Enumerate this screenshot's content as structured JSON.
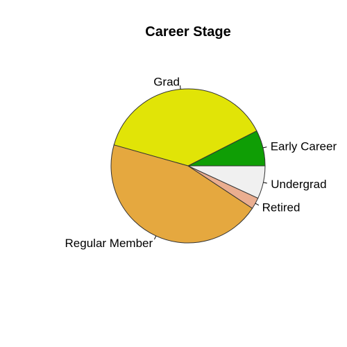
{
  "chart_data": {
    "type": "pie",
    "title": "Career Stage",
    "start_angle_deg": 0,
    "direction": "counterclockwise",
    "slices": [
      {
        "label": "Early Career",
        "value": 7.2,
        "color": "#0f9e05"
      },
      {
        "label": "Grad",
        "value": 36.5,
        "color": "#e1e407"
      },
      {
        "label": "Regular Member",
        "value": 43.2,
        "color": "#e5a83f"
      },
      {
        "label": "Retired",
        "value": 2.3,
        "color": "#eaae90"
      },
      {
        "label": "Undergrad",
        "value": 6.6,
        "color": "#f0f0f0"
      }
    ]
  }
}
